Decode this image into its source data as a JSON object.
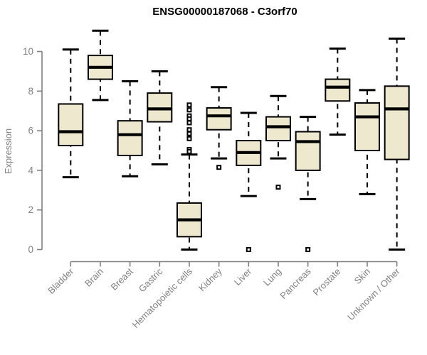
{
  "colors": {
    "box_fill": "#EDE8CE",
    "box_border": "#000000",
    "median": "#000000",
    "whisker": "#000000",
    "outlier": "#000000",
    "axis": "#808080",
    "tick_text": "#808080",
    "title_text": "#000000"
  },
  "chart_data": {
    "type": "boxplot",
    "title": "ENSG00000187068 - C3orf70",
    "xlabel": "",
    "ylabel": "Expression",
    "ylim": [
      0,
      10
    ],
    "yticks": [
      0,
      2,
      4,
      6,
      8,
      10
    ],
    "grid": "off",
    "legend": "none",
    "categories": [
      "Bladder",
      "Brain",
      "Breast",
      "Gastric",
      "Hematopoietic cells",
      "Kidney",
      "Liver",
      "Lung",
      "Pancreas",
      "Prostate",
      "Skin",
      "Unknown / Other"
    ],
    "series": [
      {
        "category": "Bladder",
        "whisker_low": 3.65,
        "q1": 5.25,
        "median": 5.95,
        "q3": 7.35,
        "whisker_high": 10.1,
        "outliers": []
      },
      {
        "category": "Brain",
        "whisker_low": 7.55,
        "q1": 8.6,
        "median": 9.2,
        "q3": 9.8,
        "whisker_high": 11.05,
        "outliers": []
      },
      {
        "category": "Breast",
        "whisker_low": 3.7,
        "q1": 4.75,
        "median": 5.8,
        "q3": 6.5,
        "whisker_high": 8.5,
        "outliers": []
      },
      {
        "category": "Gastric",
        "whisker_low": 4.3,
        "q1": 6.45,
        "median": 7.1,
        "q3": 7.9,
        "whisker_high": 9.0,
        "outliers": []
      },
      {
        "category": "Hematopoietic cells",
        "whisker_low": 0.0,
        "q1": 0.65,
        "median": 1.5,
        "q3": 2.35,
        "whisker_high": 4.8,
        "outliers": [
          7.3,
          7.05,
          6.75,
          6.6,
          6.4,
          6.05,
          5.85,
          5.6,
          5.05,
          4.95
        ]
      },
      {
        "category": "Kidney",
        "whisker_low": 4.6,
        "q1": 6.05,
        "median": 6.75,
        "q3": 7.15,
        "whisker_high": 8.2,
        "outliers": [
          4.15
        ]
      },
      {
        "category": "Liver",
        "whisker_low": 2.7,
        "q1": 4.25,
        "median": 4.9,
        "q3": 5.5,
        "whisker_high": 6.9,
        "outliers": [
          0.0
        ]
      },
      {
        "category": "Lung",
        "whisker_low": 4.6,
        "q1": 5.5,
        "median": 6.2,
        "q3": 6.7,
        "whisker_high": 7.75,
        "outliers": [
          3.15
        ]
      },
      {
        "category": "Pancreas",
        "whisker_low": 2.55,
        "q1": 4.0,
        "median": 5.45,
        "q3": 5.95,
        "whisker_high": 6.7,
        "outliers": [
          0.0
        ]
      },
      {
        "category": "Prostate",
        "whisker_low": 5.8,
        "q1": 7.5,
        "median": 8.2,
        "q3": 8.6,
        "whisker_high": 10.15,
        "outliers": []
      },
      {
        "category": "Skin",
        "whisker_low": 2.8,
        "q1": 5.0,
        "median": 6.7,
        "q3": 7.4,
        "whisker_high": 8.05,
        "outliers": []
      },
      {
        "category": "Unknown / Other",
        "whisker_low": 0.0,
        "q1": 4.55,
        "median": 7.1,
        "q3": 8.25,
        "whisker_high": 10.65,
        "outliers": []
      }
    ]
  }
}
